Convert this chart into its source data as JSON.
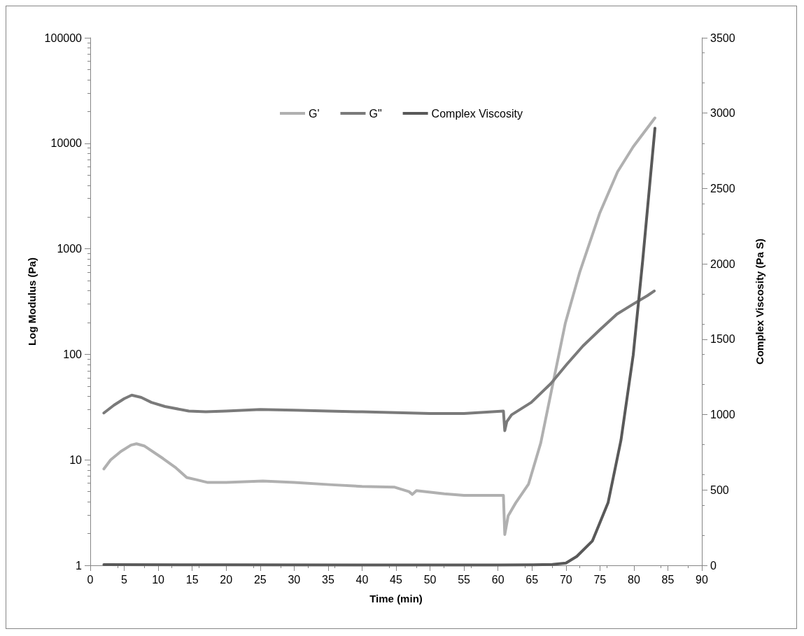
{
  "chart_data": {
    "type": "line",
    "xlabel": "Time (min)",
    "ylabel": "Log Modulus (Pa)",
    "y2label": "Complex Viscosity (Pa S)",
    "xlim": [
      0,
      90
    ],
    "xticks": [
      0,
      5,
      10,
      15,
      20,
      25,
      30,
      35,
      40,
      45,
      50,
      55,
      60,
      65,
      70,
      75,
      80,
      85,
      90
    ],
    "ylim": [
      1,
      100000
    ],
    "yticks": [
      1,
      10,
      100,
      1000,
      10000,
      100000
    ],
    "log": "y",
    "y2lim": [
      0,
      3500
    ],
    "y2ticks": [
      0,
      500,
      1000,
      1500,
      2000,
      2500,
      3000,
      3500
    ],
    "grid": false,
    "legend": "top",
    "marker": "none",
    "line_style": "solid",
    "series": [
      {
        "name": "G'",
        "color": "#b0b0b0",
        "x": [
          2,
          3,
          4.5,
          6,
          6.8,
          8,
          10.7,
          12.5,
          14.2,
          15.5,
          17.3,
          20,
          25.4,
          30,
          35.6,
          40,
          44.8,
          46.9,
          47.4,
          48,
          52.1,
          55,
          58,
          60.8,
          61,
          61.5,
          62.6,
          64.5,
          66.3,
          67.8,
          69.9,
          72,
          75,
          77.6,
          79.9,
          83.1
        ],
        "values": [
          8.2,
          10,
          12,
          13.8,
          14.2,
          13.5,
          10.3,
          8.5,
          6.8,
          6.5,
          6.1,
          6.1,
          6.3,
          6.1,
          5.8,
          5.6,
          5.5,
          5,
          4.7,
          5.1,
          4.76,
          4.6,
          4.6,
          4.6,
          1.96,
          2.95,
          3.9,
          5.9,
          14.5,
          43,
          196,
          592,
          2200,
          5370,
          9270,
          17400
        ]
      },
      {
        "name": "G\"",
        "color": "#7a7a7a",
        "x": [
          2,
          3.5,
          5,
          6.1,
          7.5,
          9,
          11,
          14.5,
          17,
          20,
          25,
          30,
          35,
          40,
          45,
          50,
          55,
          60,
          60.8,
          61,
          61.3,
          62,
          64.9,
          67.8,
          70.1,
          72.5,
          75,
          77.5,
          79.9,
          82,
          83
        ],
        "values": [
          27.8,
          33,
          38,
          41,
          39,
          35,
          32,
          29,
          28.5,
          29,
          30,
          29.5,
          29,
          28.5,
          28,
          27.5,
          27.5,
          28.8,
          29,
          18.9,
          23,
          26.7,
          35,
          53,
          80,
          120,
          171,
          240,
          299,
          360,
          398
        ]
      },
      {
        "name": "Complex Viscosity",
        "color": "#595959",
        "axis": "y2",
        "x": [
          2,
          20,
          40,
          60,
          65,
          68,
          70,
          71.6,
          73.9,
          76.2,
          78.1,
          79.9,
          81.3,
          83.1
        ],
        "values": [
          5,
          3,
          2,
          2,
          3,
          6,
          15,
          59,
          162,
          415,
          830,
          1395,
          2024,
          2900
        ]
      }
    ]
  }
}
